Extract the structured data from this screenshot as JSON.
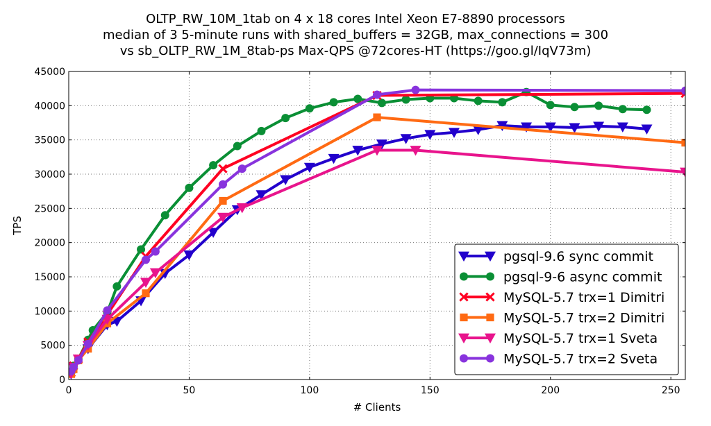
{
  "chart_data": {
    "type": "line",
    "title": [
      "OLTP_RW_10M_1tab on 4 x 18 cores Intel Xeon E7-8890 processors",
      "median of 3 5-minute runs with shared_buffers = 32GB, max_connections = 300",
      "vs sb_OLTP_RW_1M_8tab-ps Max-QPS @72cores-HT (https://goo.gl/IqV73m)"
    ],
    "xlabel": "# Clients",
    "ylabel": "TPS",
    "xlim": [
      0,
      256
    ],
    "ylim": [
      0,
      45000
    ],
    "xticks": [
      0,
      50,
      100,
      150,
      200,
      250
    ],
    "yticks": [
      0,
      5000,
      10000,
      15000,
      20000,
      25000,
      30000,
      35000,
      40000,
      45000
    ],
    "grid": true,
    "legend_position": "lower-right",
    "series": [
      {
        "name": "pgsql-9.6 sync commit",
        "color": "#2200cc",
        "marker": "triangle-down",
        "x": [
          1,
          2,
          4,
          8,
          16,
          20,
          30,
          40,
          50,
          60,
          70,
          80,
          90,
          100,
          110,
          120,
          130,
          140,
          150,
          160,
          170,
          180,
          190,
          200,
          210,
          220,
          230,
          240
        ],
        "y": [
          800,
          1800,
          3000,
          4500,
          8000,
          8500,
          11500,
          15500,
          18200,
          21500,
          24800,
          27000,
          29200,
          31000,
          32300,
          33500,
          34400,
          35200,
          35800,
          36100,
          36500,
          37100,
          36900,
          36900,
          36800,
          37000,
          36900,
          36600
        ]
      },
      {
        "name": "pgsql-9-6 async commit",
        "color": "#0a8f35",
        "marker": "circle",
        "x": [
          1,
          2,
          4,
          8,
          10,
          16,
          20,
          30,
          40,
          50,
          60,
          70,
          80,
          90,
          100,
          110,
          120,
          130,
          140,
          150,
          160,
          170,
          180,
          190,
          200,
          210,
          220,
          230,
          240
        ],
        "y": [
          1000,
          2000,
          3000,
          5800,
          7200,
          9800,
          13600,
          19000,
          24000,
          28000,
          31300,
          34100,
          36300,
          38200,
          39600,
          40500,
          41000,
          40400,
          40900,
          41100,
          41100,
          40700,
          40500,
          42000,
          40100,
          39800,
          40000,
          39500,
          39400
        ]
      },
      {
        "name": "MySQL-5.7 trx=1 Dimitri",
        "color": "#ff0022",
        "marker": "x",
        "x": [
          1,
          2,
          4,
          8,
          16,
          32,
          64,
          128,
          256
        ],
        "y": [
          1000,
          2000,
          3000,
          5500,
          9500,
          18000,
          30800,
          41500,
          41800
        ]
      },
      {
        "name": "MySQL-5.7 trx=2 Dimitri",
        "color": "#ff6a13",
        "marker": "square",
        "x": [
          1,
          2,
          4,
          8,
          16,
          32,
          64,
          128,
          256
        ],
        "y": [
          800,
          1500,
          2800,
          4500,
          8200,
          12600,
          26100,
          38300,
          34600
        ]
      },
      {
        "name": "MySQL-5.7 trx=1 Sveta",
        "color": "#e8148c",
        "marker": "triangle-down",
        "x": [
          1,
          2,
          4,
          8,
          16,
          32,
          36,
          64,
          72,
          128,
          144,
          256
        ],
        "y": [
          900,
          1800,
          3000,
          5000,
          8800,
          14200,
          15600,
          23700,
          25100,
          33500,
          33500,
          30300
        ]
      },
      {
        "name": "MySQL-5.7 trx=2 Sveta",
        "color": "#8833dd",
        "marker": "circle",
        "x": [
          1,
          2,
          4,
          8,
          16,
          32,
          36,
          64,
          72,
          128,
          144,
          256
        ],
        "y": [
          1200,
          1800,
          2800,
          5200,
          10100,
          17500,
          18700,
          28500,
          30800,
          41600,
          42300,
          42200
        ]
      }
    ]
  }
}
